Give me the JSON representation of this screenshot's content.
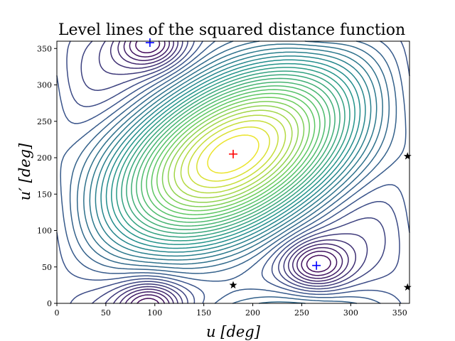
{
  "chart_data": {
    "type": "contour",
    "title": "Level lines of the squared distance function",
    "xlabel": "u [deg]",
    "ylabel": "u′ [deg]",
    "xlim": [
      0,
      360
    ],
    "ylim": [
      0,
      360
    ],
    "xticks": [
      0,
      50,
      100,
      150,
      200,
      250,
      300,
      350
    ],
    "yticks": [
      0,
      50,
      100,
      150,
      200,
      250,
      300,
      350
    ],
    "colormap": [
      "#440154",
      "#3b528b",
      "#21918c",
      "#5ec962",
      "#fde725"
    ],
    "markers": [
      {
        "name": "maximum",
        "symbol": "plus",
        "color": "#ff0000",
        "x": 180,
        "y": 205
      },
      {
        "name": "minimum",
        "symbol": "plus",
        "color": "#0000ff",
        "x": 265,
        "y": 52
      },
      {
        "name": "minimum",
        "symbol": "plus",
        "color": "#0000ff",
        "x": 95,
        "y": 358
      },
      {
        "name": "saddle",
        "symbol": "star",
        "color": "#000000",
        "x": 180,
        "y": 25
      },
      {
        "name": "saddle",
        "symbol": "star",
        "color": "#000000",
        "x": 358,
        "y": 202
      },
      {
        "name": "saddle",
        "symbol": "star",
        "color": "#000000",
        "x": 358,
        "y": 22
      }
    ]
  }
}
